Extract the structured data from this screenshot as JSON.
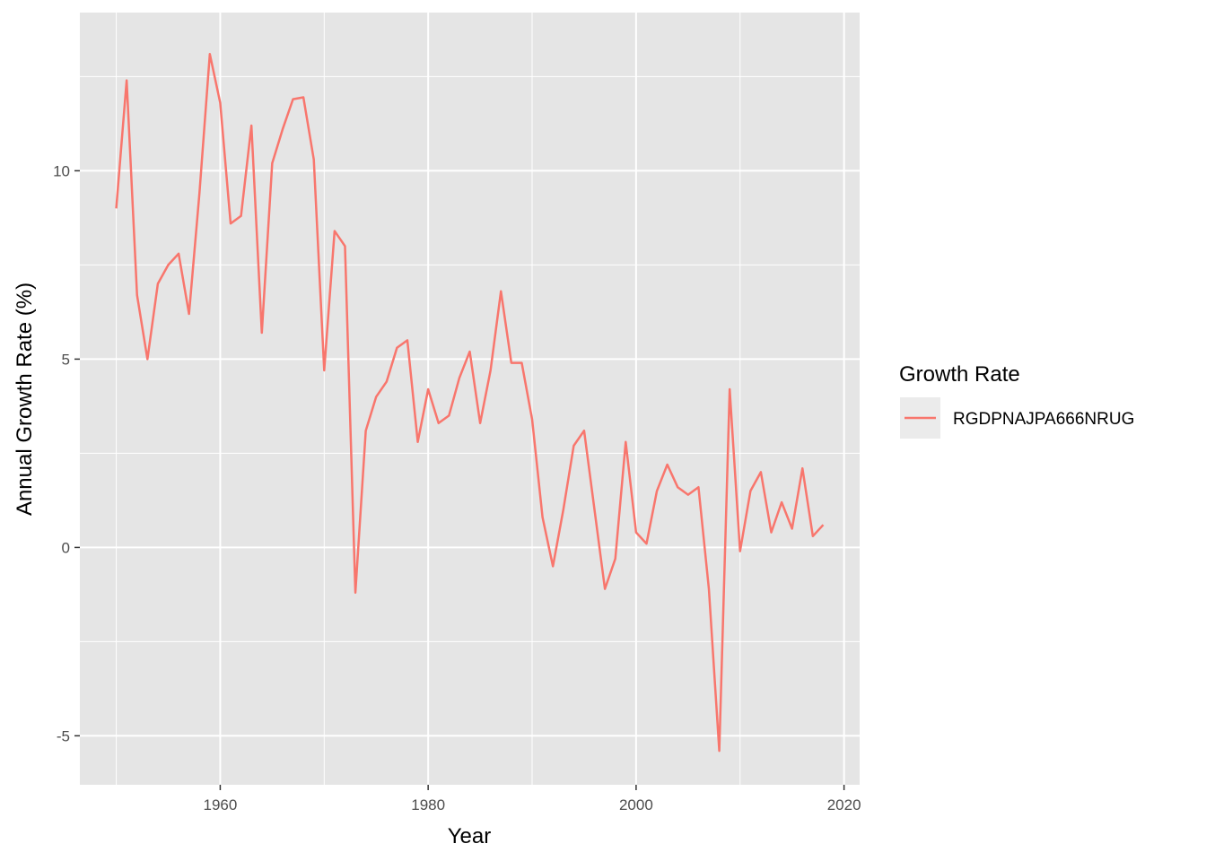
{
  "chart_data": {
    "type": "line",
    "xlabel": "Year",
    "ylabel": "Annual Growth Rate (%)",
    "xlim": [
      1946.5,
      2021.5
    ],
    "ylim": [
      -6.3,
      14.2
    ],
    "x_ticks": [
      1960,
      1980,
      2000,
      2020
    ],
    "y_ticks": [
      -5,
      0,
      5,
      10
    ],
    "x_tick_labels": [
      "1960",
      "1980",
      "2000",
      "2020"
    ],
    "y_tick_labels": [
      "-5",
      "0",
      "5",
      "10"
    ],
    "grid": true,
    "legend": {
      "title": "Growth Rate",
      "position": "right"
    },
    "colors": {
      "panel": "#e5e5e5",
      "grid": "#ffffff",
      "series": "#f8766d"
    },
    "series": [
      {
        "name": "RGDPNAJPA666NRUG",
        "x": [
          1950,
          1951,
          1952,
          1953,
          1954,
          1955,
          1956,
          1957,
          1958,
          1959,
          1960,
          1961,
          1962,
          1963,
          1964,
          1965,
          1966,
          1967,
          1968,
          1969,
          1970,
          1971,
          1972,
          1973,
          1974,
          1975,
          1976,
          1977,
          1978,
          1979,
          1980,
          1981,
          1982,
          1983,
          1984,
          1985,
          1986,
          1987,
          1988,
          1989,
          1990,
          1991,
          1992,
          1993,
          1994,
          1995,
          1996,
          1997,
          1998,
          1999,
          2000,
          2001,
          2002,
          2003,
          2004,
          2005,
          2006,
          2007,
          2008,
          2009,
          2010,
          2011,
          2012,
          2013,
          2014,
          2015,
          2016,
          2017,
          2018
        ],
        "values": [
          9.0,
          12.4,
          6.7,
          5.0,
          7.0,
          7.5,
          7.8,
          6.2,
          9.4,
          13.1,
          11.8,
          8.6,
          8.8,
          11.2,
          5.7,
          10.2,
          11.1,
          11.9,
          11.95,
          10.3,
          4.7,
          8.4,
          8.0,
          -1.2,
          3.1,
          4.0,
          4.4,
          5.3,
          5.5,
          2.8,
          4.2,
          3.3,
          3.5,
          4.5,
          5.2,
          3.3,
          4.7,
          6.8,
          4.9,
          4.9,
          3.4,
          0.8,
          -0.5,
          1.0,
          2.7,
          3.1,
          1.0,
          -1.1,
          -0.3,
          2.8,
          0.4,
          0.1,
          1.5,
          2.2,
          1.6,
          1.4,
          1.6,
          -1.1,
          -5.4,
          4.2,
          -0.1,
          1.5,
          2.0,
          0.4,
          1.2,
          0.5,
          2.1,
          0.3,
          0.6
        ]
      }
    ]
  }
}
